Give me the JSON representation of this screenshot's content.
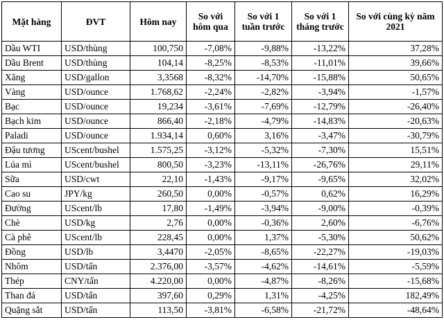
{
  "table": {
    "headers": [
      "Mặt hàng",
      "ĐVT",
      "Hôm nay",
      "So với hôm qua",
      "So với 1 tuần trước",
      "So với 1 tháng trước",
      "So với cùng kỳ năm 2021"
    ],
    "rows": [
      [
        "Dầu WTI",
        "USD/thùng",
        "100,750",
        "-7,08%",
        "-9,88%",
        "-13,22%",
        "37,28%"
      ],
      [
        "Dầu Brent",
        "USD/thùng",
        "104,14",
        "-8,25%",
        "-8,53%",
        "-11,01%",
        "39,66%"
      ],
      [
        "Xăng",
        "USD/gallon",
        "3,3568",
        "-8,32%",
        "-14,70%",
        "-15,88%",
        "50,65%"
      ],
      [
        "Vàng",
        "USD/ounce",
        "1.768,62",
        "-2,24%",
        "-2,82%",
        "-3,94%",
        "-1,57%"
      ],
      [
        "Bạc",
        "USD/ounce",
        "19,234",
        "-3,61%",
        "-7,69%",
        "-12,79%",
        "-26,40%"
      ],
      [
        "Bạch kim",
        "USD/ounce",
        "866,40",
        "-2,18%",
        "-4,79%",
        "-14,83%",
        "-20,63%"
      ],
      [
        "Paladi",
        "USD/ounce",
        "1.934,14",
        "0,60%",
        "3,16%",
        "-3,47%",
        "-30,79%"
      ],
      [
        "Đậu tương",
        "UScent/bushel",
        "1.575,25",
        "-3,12%",
        "-5,32%",
        "-7,30%",
        "15,51%"
      ],
      [
        "Lúa mì",
        "UScent/bushel",
        "800,50",
        "-3,23%",
        "-13,11%",
        "-26,76%",
        "29,11%"
      ],
      [
        "Sữa",
        "USD/cwt",
        "22,10",
        "-1,43%",
        "-9,17%",
        "-9,65%",
        "32,02%"
      ],
      [
        "Cao su",
        "JPY/kg",
        "260,50",
        "0,00%",
        "-0,57%",
        "0,62%",
        "16,29%"
      ],
      [
        "Đường",
        "UScent/lb",
        "17,80",
        "-1,49%",
        "-3,94%",
        "-9,00%",
        "-0,39%"
      ],
      [
        "Chè",
        "USD/kg",
        "2,76",
        "0,00%",
        "-0,36%",
        "2,60%",
        "-6,76%"
      ],
      [
        "Cà phê",
        "UScent/lb",
        "228,45",
        "0,00%",
        "1,37%",
        "-5,30%",
        "50,62%"
      ],
      [
        "Đồng",
        "USD/lb",
        "3,4470",
        "-2,05%",
        "-8,65%",
        "-22,27%",
        "-19,03%"
      ],
      [
        "Nhôm",
        "USD/tấn",
        "2.376,00",
        "-3,57%",
        "-4,62%",
        "-14,61%",
        "-5,59%"
      ],
      [
        "Thép",
        "CNY/tấn",
        "4.220,00",
        "0,00%",
        "-4,87%",
        "-8,26%",
        "-15,68%"
      ],
      [
        "Than đá",
        "USD/tấn",
        "397,60",
        "0,29%",
        "1,31%",
        "-4,25%",
        "182,49%"
      ],
      [
        "Quặng sắt",
        "USD/tấn",
        "113,50",
        "-3,81%",
        "-6,58%",
        "-21,72%",
        "-48,64%"
      ]
    ]
  }
}
